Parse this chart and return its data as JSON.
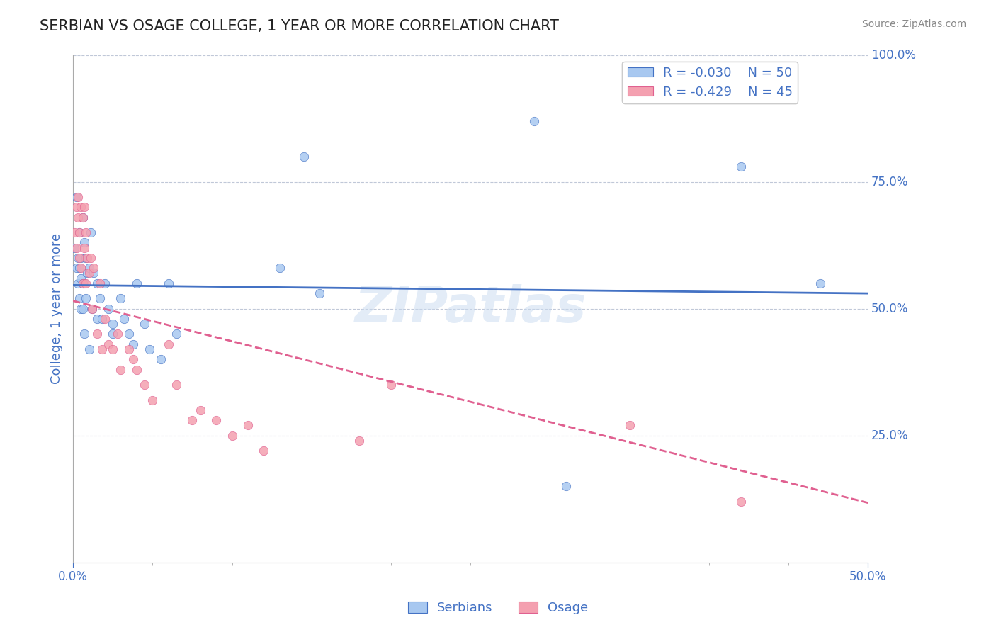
{
  "title": "SERBIAN VS OSAGE COLLEGE, 1 YEAR OR MORE CORRELATION CHART",
  "source": "Source: ZipAtlas.com",
  "xlabel": "",
  "ylabel": "College, 1 year or more",
  "xlim": [
    0.0,
    0.5
  ],
  "ylim": [
    0.0,
    1.0
  ],
  "xtick_labels": [
    "0.0%",
    "50.0%"
  ],
  "ytick_labels": [
    "100.0%",
    "75.0%",
    "50.0%",
    "25.0%"
  ],
  "ytick_values": [
    1.0,
    0.75,
    0.5,
    0.25
  ],
  "legend_r1": "R = -0.030",
  "legend_n1": "N = 50",
  "legend_r2": "R = -0.429",
  "legend_n2": "N = 45",
  "color_serbian": "#a8c8f0",
  "color_osage": "#f4a0b0",
  "color_line_serbian": "#4472c4",
  "color_line_osage": "#e06090",
  "color_text": "#4472c4",
  "color_grid": "#c0c8d8",
  "watermark": "ZIPatlas",
  "watermark_color": "#c8daf0",
  "serbians_x": [
    0.001,
    0.002,
    0.002,
    0.003,
    0.003,
    0.004,
    0.004,
    0.004,
    0.005,
    0.005,
    0.005,
    0.006,
    0.006,
    0.006,
    0.007,
    0.007,
    0.007,
    0.008,
    0.008,
    0.009,
    0.01,
    0.01,
    0.011,
    0.012,
    0.013,
    0.015,
    0.015,
    0.017,
    0.018,
    0.02,
    0.022,
    0.025,
    0.025,
    0.03,
    0.032,
    0.035,
    0.038,
    0.04,
    0.045,
    0.048,
    0.055,
    0.06,
    0.065,
    0.13,
    0.145,
    0.155,
    0.29,
    0.31,
    0.42,
    0.47
  ],
  "serbians_y": [
    0.62,
    0.58,
    0.72,
    0.6,
    0.55,
    0.58,
    0.65,
    0.52,
    0.6,
    0.56,
    0.5,
    0.68,
    0.55,
    0.5,
    0.63,
    0.55,
    0.45,
    0.6,
    0.52,
    0.57,
    0.58,
    0.42,
    0.65,
    0.5,
    0.57,
    0.48,
    0.55,
    0.52,
    0.48,
    0.55,
    0.5,
    0.47,
    0.45,
    0.52,
    0.48,
    0.45,
    0.43,
    0.55,
    0.47,
    0.42,
    0.4,
    0.55,
    0.45,
    0.58,
    0.8,
    0.53,
    0.87,
    0.15,
    0.78,
    0.55
  ],
  "osage_x": [
    0.001,
    0.002,
    0.002,
    0.003,
    0.003,
    0.004,
    0.004,
    0.005,
    0.005,
    0.006,
    0.006,
    0.007,
    0.007,
    0.008,
    0.008,
    0.009,
    0.01,
    0.011,
    0.012,
    0.013,
    0.015,
    0.017,
    0.018,
    0.02,
    0.022,
    0.025,
    0.028,
    0.03,
    0.035,
    0.038,
    0.04,
    0.045,
    0.05,
    0.06,
    0.065,
    0.075,
    0.08,
    0.09,
    0.1,
    0.11,
    0.12,
    0.18,
    0.2,
    0.35,
    0.42
  ],
  "osage_y": [
    0.65,
    0.7,
    0.62,
    0.68,
    0.72,
    0.65,
    0.6,
    0.7,
    0.58,
    0.68,
    0.55,
    0.7,
    0.62,
    0.65,
    0.55,
    0.6,
    0.57,
    0.6,
    0.5,
    0.58,
    0.45,
    0.55,
    0.42,
    0.48,
    0.43,
    0.42,
    0.45,
    0.38,
    0.42,
    0.4,
    0.38,
    0.35,
    0.32,
    0.43,
    0.35,
    0.28,
    0.3,
    0.28,
    0.25,
    0.27,
    0.22,
    0.24,
    0.35,
    0.27,
    0.12
  ]
}
